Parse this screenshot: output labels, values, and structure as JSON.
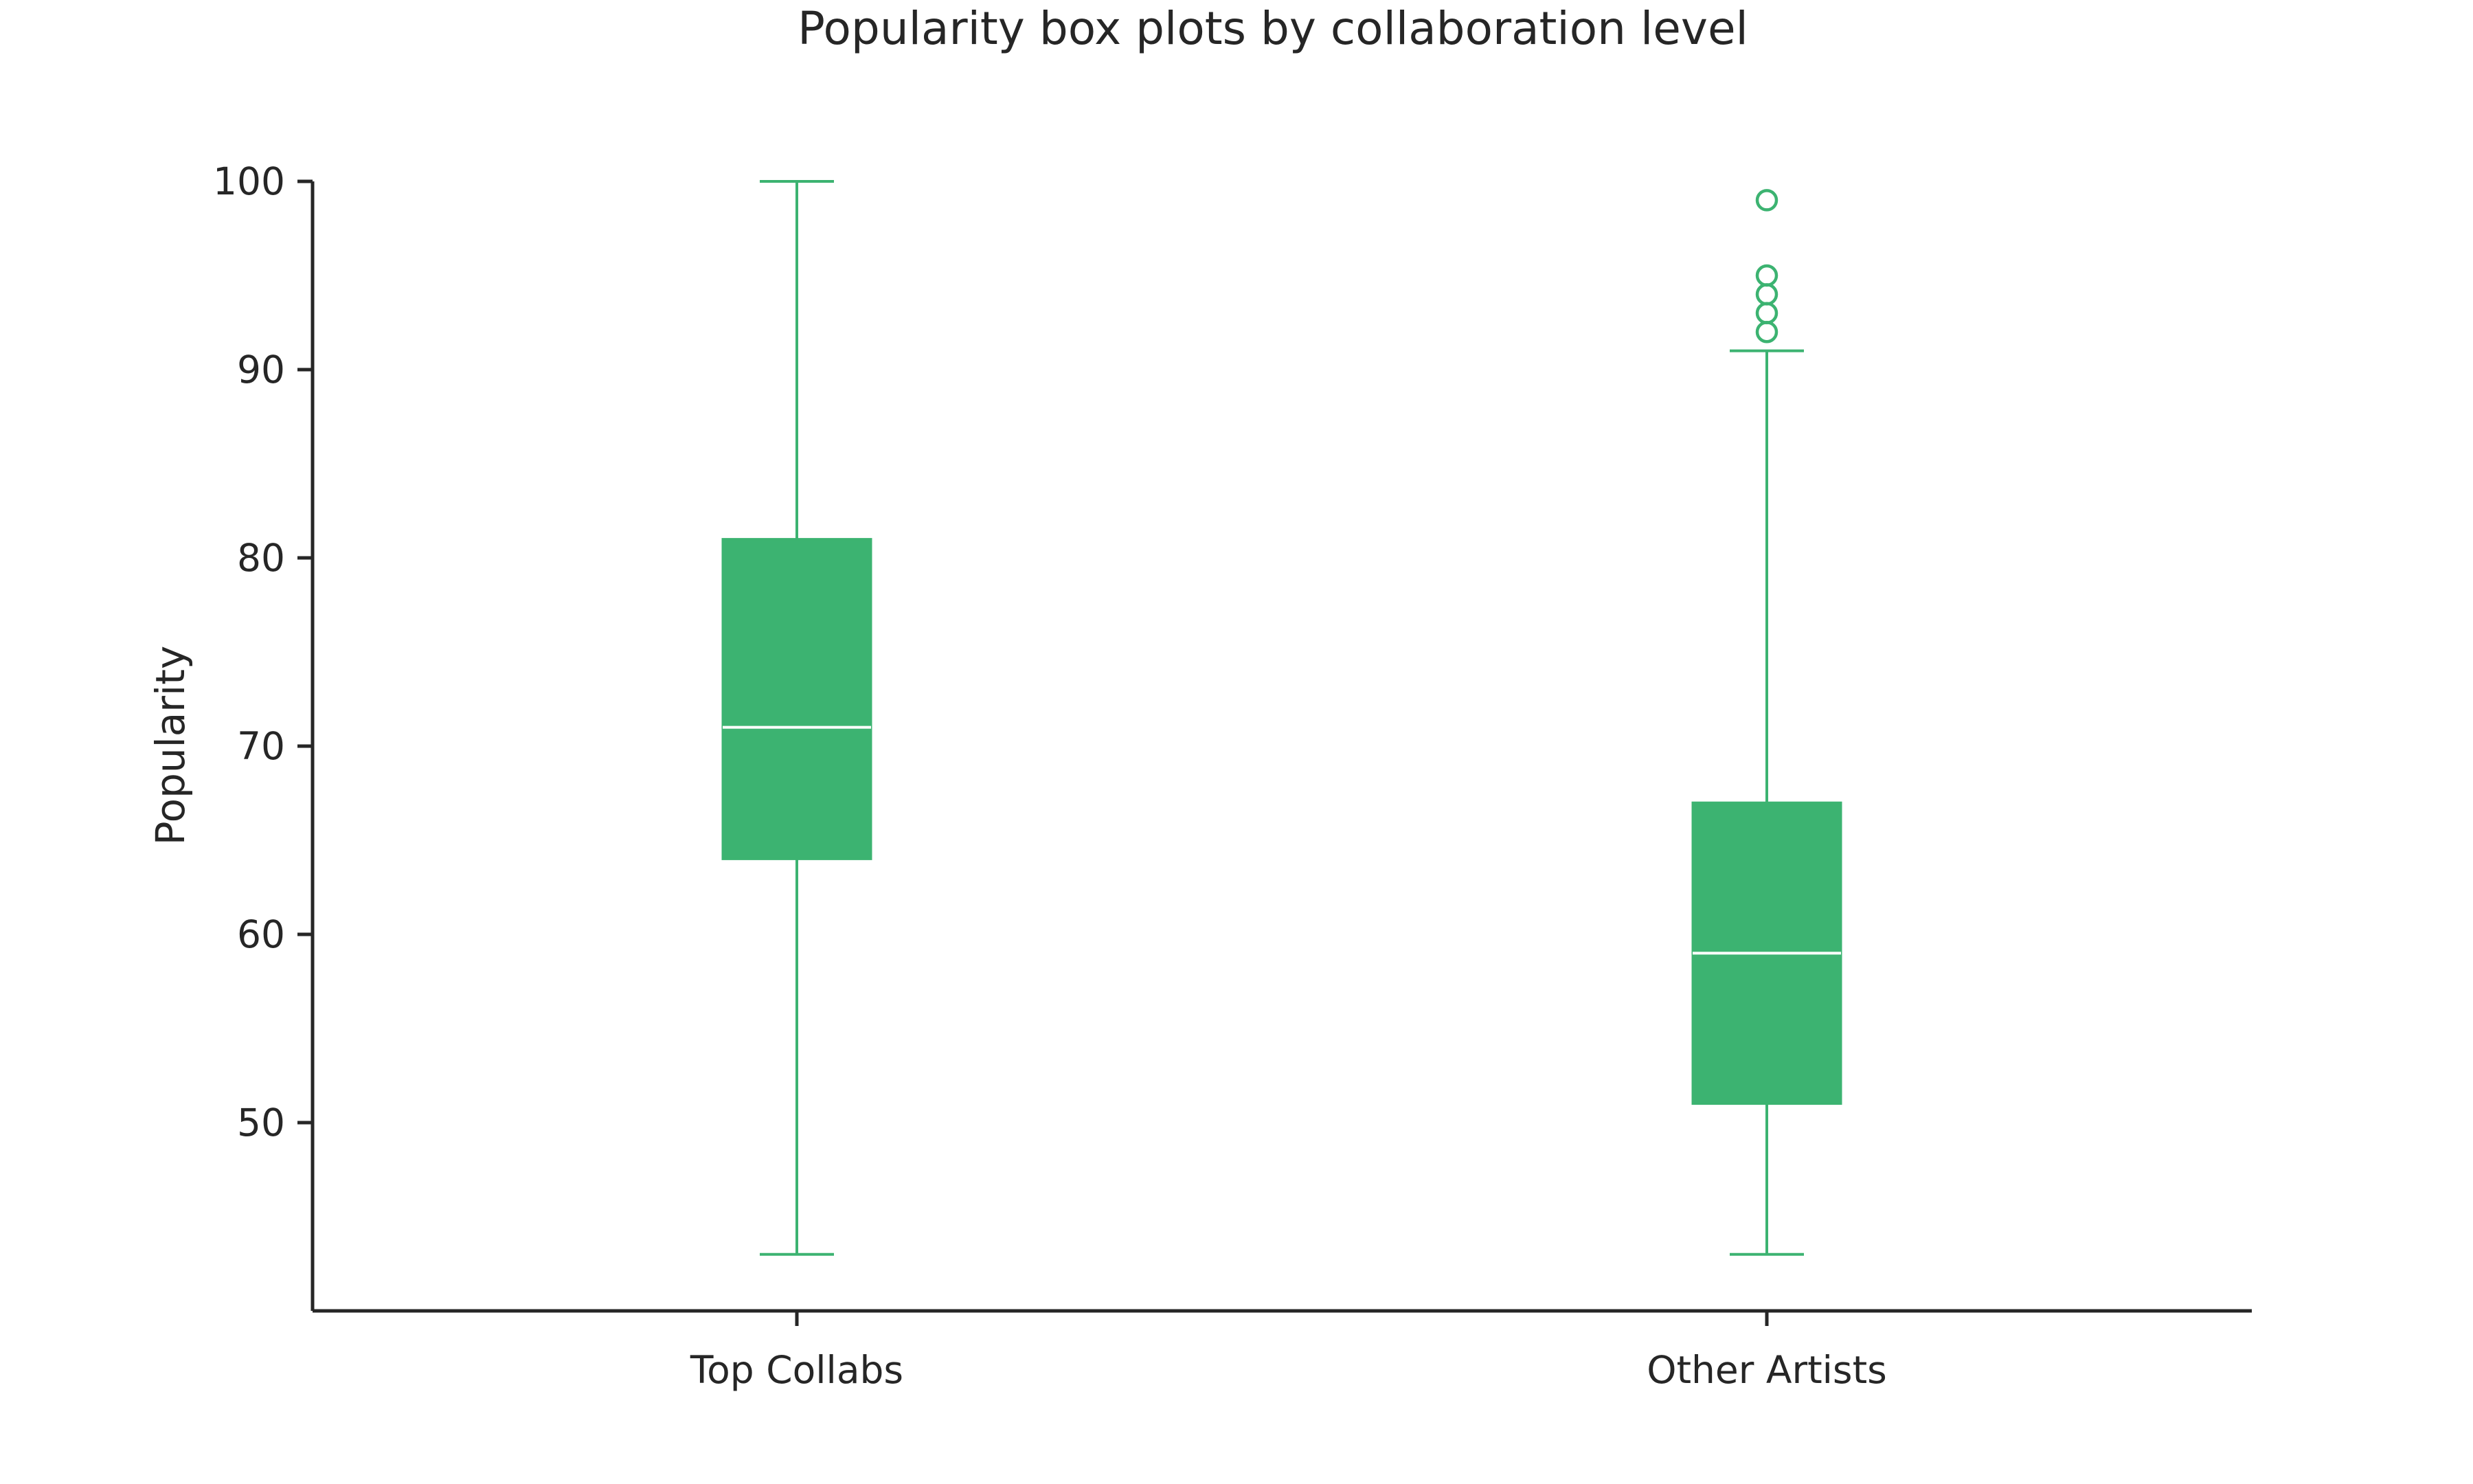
{
  "chart_data": {
    "type": "box",
    "title": "Popularity box plots by collaboration level",
    "xlabel": "",
    "ylabel": "Popularity",
    "categories": [
      "Top Collabs",
      "Other Artists"
    ],
    "boxes": [
      {
        "category": "Top Collabs",
        "whisker_low": 43,
        "q1": 64,
        "median": 71,
        "q3": 81,
        "whisker_high": 100,
        "outliers": []
      },
      {
        "category": "Other Artists",
        "whisker_low": 43,
        "q1": 51,
        "median": 59,
        "q3": 67,
        "whisker_high": 91,
        "outliers": [
          92,
          93,
          94,
          95,
          99
        ]
      }
    ],
    "yticks": [
      50,
      60,
      70,
      80,
      90,
      100
    ],
    "ylim": [
      40,
      100
    ],
    "grid": false,
    "colors": {
      "box_fill": "#3cb371",
      "median_line": "#ffffff",
      "axis": "#262626"
    }
  }
}
